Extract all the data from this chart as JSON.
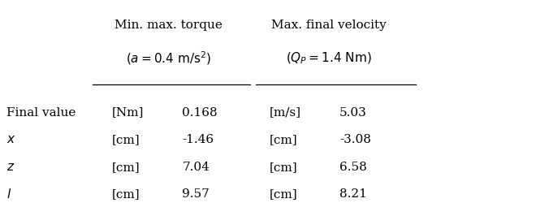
{
  "col1_header1": "Min. max. torque",
  "col2_header1": "Max. final velocity",
  "row_labels": [
    "Final value",
    "x",
    "z",
    "l"
  ],
  "col1_units": [
    "[Nm]",
    "[cm]",
    "[cm]",
    "[cm]"
  ],
  "col1_values": [
    "0.168",
    "-1.46",
    "7.04",
    "9.57"
  ],
  "col2_units": [
    "[m/s]",
    "[cm]",
    "[cm]",
    "[cm]"
  ],
  "col2_values": [
    "5.03",
    "-3.08",
    "6.58",
    "8.21"
  ],
  "bg_color": "#ffffff",
  "text_color": "#000000",
  "fontsize": 11
}
